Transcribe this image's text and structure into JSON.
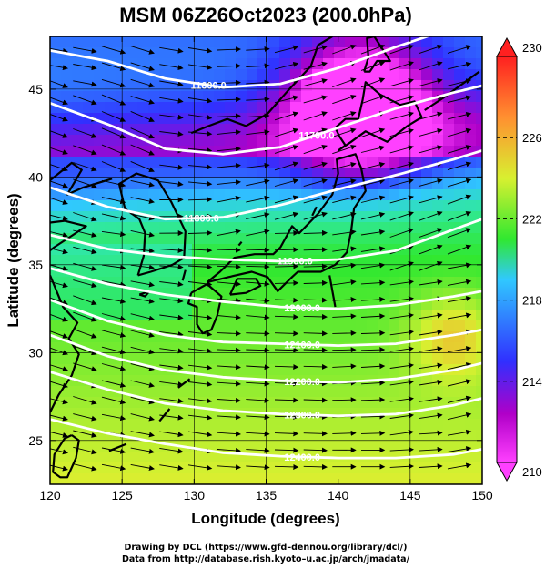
{
  "title": "MSM 06Z26Oct2023 (200.0hPa)",
  "credits": [
    "Drawing by DCL (https://www.gfd–dennou.org/library/dcl/)",
    "Data from http://database.rish.kyoto–u.ac.jp/arch/jmadata/"
  ],
  "chart_data": {
    "type": "heatmap",
    "title": "MSM 06Z26Oct2023 (200.0hPa)",
    "xlabel": "Longitude (degrees)",
    "ylabel": "Latitude  (degrees)",
    "xlim": [
      120,
      150
    ],
    "ylim": [
      22.5,
      48
    ],
    "xticks": [
      120,
      125,
      130,
      135,
      140,
      145,
      150
    ],
    "yticks": [
      25,
      30,
      35,
      40,
      45
    ],
    "grid": true,
    "shading": {
      "variable": "temperature",
      "range": [
        210,
        230
      ],
      "colorbar_ticks": [
        210,
        214,
        218,
        222,
        226,
        230
      ],
      "colors": [
        "#ff40ff",
        "#b000c8",
        "#3030ff",
        "#30c8ff",
        "#30e830",
        "#d8f030",
        "#ff9030",
        "#ff2020"
      ]
    },
    "contours": {
      "variable": "geopotential height",
      "levels": [
        {
          "label": "11600.0",
          "lon": [
            120,
            124,
            128,
            132,
            136,
            140,
            144,
            148,
            150
          ],
          "lat": [
            47.2,
            46.6,
            45.6,
            45.1,
            45.3,
            46.2,
            47.4,
            48.5,
            49.0
          ]
        },
        {
          "label": "11700.0",
          "lon": [
            120,
            124,
            128,
            132,
            136,
            140,
            144,
            148,
            150
          ],
          "lat": [
            44.2,
            43.0,
            41.6,
            41.3,
            41.7,
            42.8,
            43.9,
            44.8,
            45.2
          ]
        },
        {
          "label": "11800.0",
          "lon": [
            120,
            124,
            128,
            132,
            136,
            140,
            144,
            148,
            150
          ],
          "lat": [
            39.4,
            38.3,
            37.6,
            37.7,
            38.4,
            39.3,
            40.1,
            41.0,
            41.5
          ]
        },
        {
          "label": "11900.0",
          "lon": [
            120,
            124,
            128,
            132,
            136,
            140,
            144,
            148,
            150
          ],
          "lat": [
            36.7,
            35.9,
            35.5,
            35.3,
            35.2,
            35.3,
            35.8,
            37.0,
            37.6
          ]
        },
        {
          "label": "12000.0",
          "lon": [
            120,
            124,
            128,
            132,
            136,
            140,
            144,
            148,
            150
          ],
          "lat": [
            34.8,
            33.9,
            33.3,
            32.9,
            32.6,
            32.5,
            32.7,
            33.2,
            33.5
          ]
        },
        {
          "label": "12100.0",
          "lon": [
            120,
            124,
            128,
            132,
            136,
            140,
            144,
            148,
            150
          ],
          "lat": [
            33.0,
            31.8,
            31.0,
            30.6,
            30.5,
            30.4,
            30.5,
            31.0,
            31.3
          ]
        },
        {
          "label": "12200.0",
          "lon": [
            120,
            124,
            128,
            132,
            136,
            140,
            144,
            148,
            150
          ],
          "lat": [
            31.0,
            29.8,
            29.0,
            28.6,
            28.4,
            28.3,
            28.5,
            29.0,
            29.4
          ]
        },
        {
          "label": "12300.0",
          "lon": [
            120,
            124,
            128,
            132,
            136,
            140,
            144,
            148,
            150
          ],
          "lat": [
            28.9,
            27.9,
            27.1,
            26.7,
            26.5,
            26.4,
            26.5,
            27.0,
            27.4
          ]
        },
        {
          "label": "12400.0",
          "lon": [
            120,
            124,
            128,
            132,
            136,
            140,
            144,
            148,
            150
          ],
          "lat": [
            26.2,
            25.4,
            24.8,
            24.3,
            24.1,
            24.0,
            24.0,
            24.2,
            24.5
          ]
        }
      ]
    },
    "vectors": {
      "variable": "wind",
      "direction": "predominantly westerly (west to east)"
    }
  }
}
